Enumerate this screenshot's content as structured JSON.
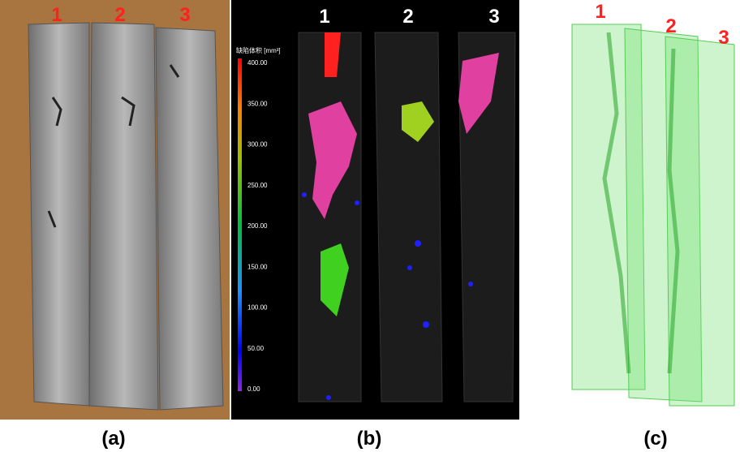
{
  "panels": [
    {
      "caption": "(a)",
      "labels": [
        "1",
        "2",
        "3"
      ]
    },
    {
      "caption": "(b)",
      "labels": [
        "1",
        "2",
        "3"
      ],
      "colorbar": {
        "title": "缺陷体积 [mm³]",
        "ticks": [
          "400.00",
          "350.00",
          "300.00",
          "250.00",
          "200.00",
          "150.00",
          "100.00",
          "50.00",
          "0.00"
        ]
      }
    },
    {
      "caption": "(c)",
      "labels": [
        "1",
        "2",
        "3"
      ]
    }
  ]
}
